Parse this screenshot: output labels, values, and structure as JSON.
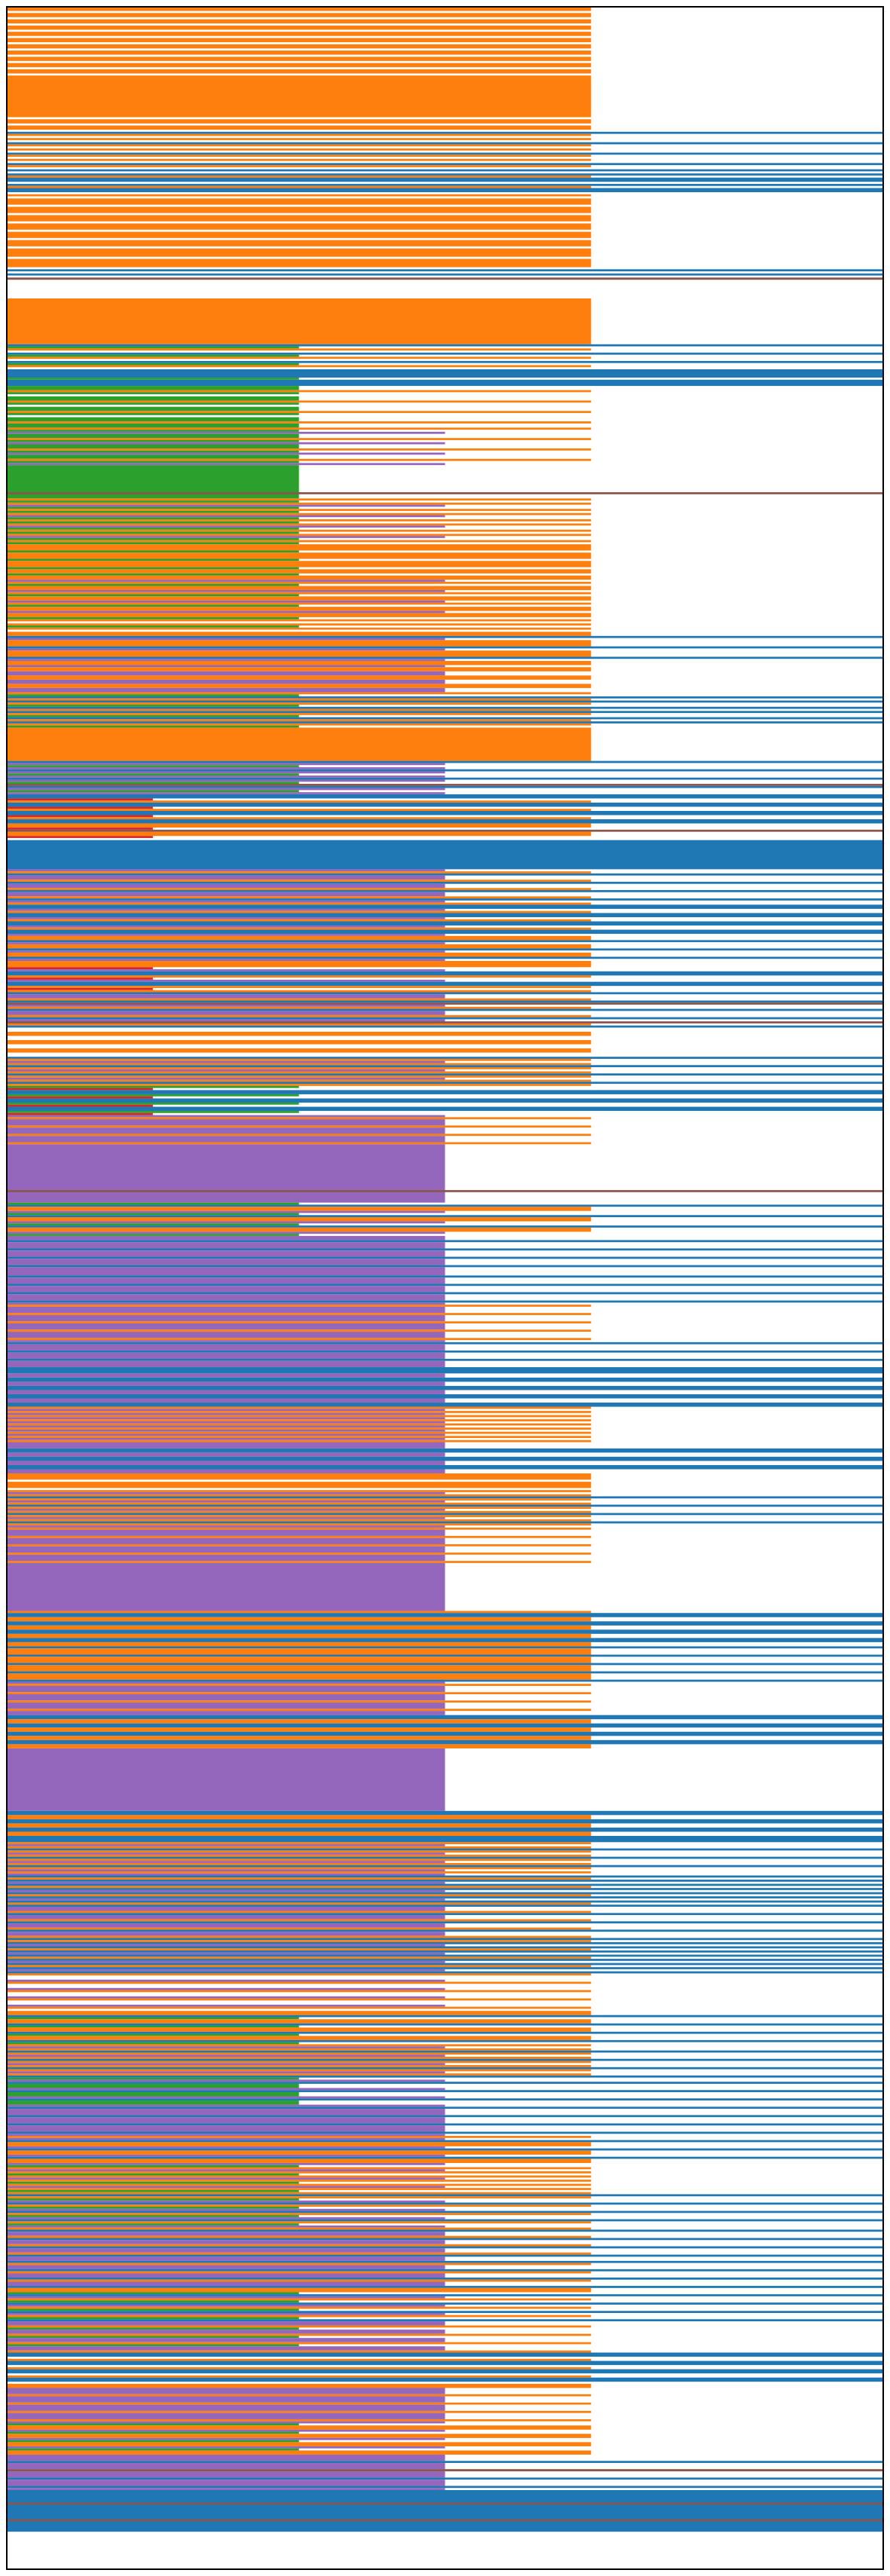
{
  "chart_data": {
    "type": "bar",
    "orientation": "horizontal",
    "title": "",
    "xlabel": "",
    "ylabel": "",
    "xlim": [
      0,
      6
    ],
    "grid": false,
    "legend": "none",
    "colors": {
      "6": "#1f77b4",
      "4": "#ff7f0e",
      "3": "#9467bd",
      "2": "#2ca02c",
      "1": "#d62728",
      "split": "#8c564b"
    },
    "rows": 1230,
    "bands": [
      {
        "start": 0,
        "pattern": [
          4,
          4,
          0
        ]
      },
      {
        "start": 33,
        "pattern": [
          4,
          4,
          4,
          4
        ]
      },
      {
        "start": 52,
        "pattern": [
          4,
          0,
          4
        ]
      },
      {
        "start": 58,
        "pattern": [
          4,
          0,
          6,
          4,
          0
        ]
      },
      {
        "start": 78,
        "pattern": [
          6,
          0,
          6,
          4,
          6
        ]
      },
      {
        "start": 90,
        "pattern": [
          4,
          0,
          4,
          4
        ]
      },
      {
        "start": 112,
        "pattern": [
          4,
          4,
          4,
          0,
          4
        ]
      },
      {
        "start": 126,
        "pattern": [
          6,
          0
        ]
      },
      {
        "start": 132,
        "pattern": [
          0
        ]
      },
      {
        "start": 140,
        "pattern": [
          4,
          4,
          4,
          4
        ]
      },
      {
        "start": 162,
        "pattern": [
          6,
          2,
          4,
          0
        ]
      },
      {
        "start": 175,
        "pattern": [
          6,
          6,
          6,
          2
        ]
      },
      {
        "start": 182,
        "pattern": [
          2,
          2,
          4,
          2,
          0
        ]
      },
      {
        "start": 200,
        "pattern": [
          2,
          2,
          4,
          2,
          3
        ]
      },
      {
        "start": 220,
        "pattern": [
          2,
          2,
          2,
          2
        ]
      },
      {
        "start": 236,
        "pattern": [
          4,
          2,
          4,
          3,
          2
        ]
      },
      {
        "start": 258,
        "pattern": [
          4,
          4,
          4,
          2
        ]
      },
      {
        "start": 272,
        "pattern": [
          2,
          4,
          4,
          3,
          4
        ]
      },
      {
        "start": 292,
        "pattern": [
          4,
          2,
          4,
          0
        ]
      },
      {
        "start": 300,
        "pattern": [
          4,
          4,
          6,
          3,
          4
        ]
      },
      {
        "start": 316,
        "pattern": [
          3,
          4,
          4,
          3
        ]
      },
      {
        "start": 330,
        "pattern": [
          2,
          6,
          4,
          6,
          4
        ]
      },
      {
        "start": 346,
        "pattern": [
          4,
          4,
          4,
          4
        ]
      },
      {
        "start": 362,
        "pattern": [
          6,
          3,
          2,
          3
        ]
      },
      {
        "start": 378,
        "pattern": [
          6,
          6,
          1,
          4
        ]
      },
      {
        "start": 392,
        "pattern": [
          4,
          4,
          1,
          0
        ]
      },
      {
        "start": 400,
        "pattern": [
          6,
          6,
          6,
          6
        ]
      },
      {
        "start": 414,
        "pattern": [
          3,
          4,
          6,
          3
        ]
      },
      {
        "start": 428,
        "pattern": [
          6,
          3,
          4,
          6
        ]
      },
      {
        "start": 446,
        "pattern": [
          4,
          4,
          6,
          3
        ]
      },
      {
        "start": 460,
        "pattern": [
          4,
          1,
          3,
          6,
          6
        ]
      },
      {
        "start": 472,
        "pattern": [
          4,
          6,
          3,
          3
        ]
      },
      {
        "start": 490,
        "pattern": [
          0,
          0,
          4,
          4
        ]
      },
      {
        "start": 504,
        "pattern": [
          6,
          4,
          3,
          4
        ]
      },
      {
        "start": 518,
        "pattern": [
          2,
          1,
          6,
          6
        ]
      },
      {
        "start": 532,
        "pattern": [
          3,
          4,
          3,
          3
        ]
      },
      {
        "start": 546,
        "pattern": [
          3,
          3,
          3,
          3
        ]
      },
      {
        "start": 574,
        "pattern": [
          2,
          6,
          4,
          4,
          3
        ]
      },
      {
        "start": 590,
        "pattern": [
          3,
          3,
          6,
          3
        ]
      },
      {
        "start": 606,
        "pattern": [
          3,
          3,
          3,
          6
        ]
      },
      {
        "start": 622,
        "pattern": [
          3,
          4,
          3,
          3
        ]
      },
      {
        "start": 640,
        "pattern": [
          3,
          6,
          3,
          3
        ]
      },
      {
        "start": 654,
        "pattern": [
          6,
          6,
          3,
          3
        ]
      },
      {
        "start": 672,
        "pattern": [
          4,
          3,
          4,
          3
        ]
      },
      {
        "start": 690,
        "pattern": [
          3,
          3,
          6,
          6
        ]
      },
      {
        "start": 704,
        "pattern": [
          4,
          4,
          4,
          0
        ]
      },
      {
        "start": 712,
        "pattern": [
          4,
          3,
          4,
          6
        ]
      },
      {
        "start": 730,
        "pattern": [
          4,
          3,
          3,
          3
        ]
      },
      {
        "start": 748,
        "pattern": [
          3,
          3,
          3,
          3
        ]
      },
      {
        "start": 770,
        "pattern": [
          4,
          6,
          6,
          4
        ]
      },
      {
        "start": 786,
        "pattern": [
          4,
          6,
          4,
          4
        ]
      },
      {
        "start": 804,
        "pattern": [
          3,
          4,
          3,
          3
        ]
      },
      {
        "start": 820,
        "pattern": [
          6,
          6,
          4,
          4
        ]
      },
      {
        "start": 836,
        "pattern": [
          3,
          3,
          3,
          3
        ]
      },
      {
        "start": 866,
        "pattern": [
          6,
          6,
          4,
          4
        ]
      },
      {
        "start": 880,
        "pattern": [
          6,
          4,
          3,
          4
        ]
      },
      {
        "start": 896,
        "pattern": [
          3,
          6,
          4,
          6
        ]
      },
      {
        "start": 912,
        "pattern": [
          3,
          3,
          4,
          6
        ]
      },
      {
        "start": 928,
        "pattern": [
          4,
          6,
          3,
          6
        ]
      },
      {
        "start": 944,
        "pattern": [
          4,
          0,
          0,
          3
        ]
      },
      {
        "start": 962,
        "pattern": [
          4,
          4,
          6,
          2
        ]
      },
      {
        "start": 978,
        "pattern": [
          4,
          3,
          4,
          6
        ]
      },
      {
        "start": 994,
        "pattern": [
          2,
          3,
          6,
          2
        ]
      },
      {
        "start": 1008,
        "pattern": [
          6,
          3,
          3,
          3
        ]
      },
      {
        "start": 1022,
        "pattern": [
          4,
          3,
          6,
          4
        ]
      },
      {
        "start": 1036,
        "pattern": [
          2,
          4,
          3,
          4
        ]
      },
      {
        "start": 1050,
        "pattern": [
          6,
          4,
          2,
          3
        ]
      },
      {
        "start": 1066,
        "pattern": [
          4,
          6,
          3,
          3
        ]
      },
      {
        "start": 1080,
        "pattern": [
          3,
          3,
          6,
          4
        ]
      },
      {
        "start": 1096,
        "pattern": [
          4,
          2,
          6,
          3
        ]
      },
      {
        "start": 1112,
        "pattern": [
          3,
          4,
          2,
          3
        ]
      },
      {
        "start": 1126,
        "pattern": [
          6,
          6,
          0,
          4
        ]
      },
      {
        "start": 1142,
        "pattern": [
          4,
          3,
          3,
          3
        ]
      },
      {
        "start": 1160,
        "pattern": [
          2,
          4,
          4,
          3
        ]
      },
      {
        "start": 1176,
        "pattern": [
          3,
          3,
          6,
          3
        ]
      },
      {
        "start": 1192,
        "pattern": [
          6,
          6,
          6,
          6
        ]
      },
      {
        "start": 1212,
        "pattern": [
          0,
          0,
          0,
          0
        ]
      }
    ],
    "splits": [
      130,
      233,
      373,
      395,
      478,
      487,
      568,
      1182,
      1198,
      1206
    ]
  }
}
